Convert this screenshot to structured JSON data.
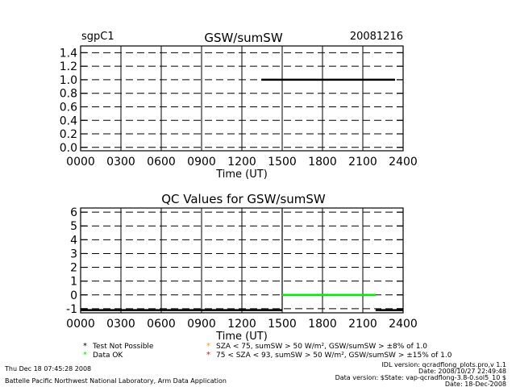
{
  "chart_data": [
    {
      "type": "line",
      "title": "GSW/sumSW",
      "left_label": "sgpC1",
      "right_label": "20081216",
      "xlabel": "Time (UT)",
      "ylabel": "",
      "xlim": [
        0,
        2400
      ],
      "ylim": [
        -0.05,
        1.5
      ],
      "xticks": [
        "0000",
        "0300",
        "0600",
        "0900",
        "1200",
        "1500",
        "1800",
        "2100",
        "2400"
      ],
      "yticks": [
        "0.0",
        "0.2",
        "0.4",
        "0.6",
        "0.8",
        "1.0",
        "1.2",
        "1.4"
      ],
      "yticks_values": [
        0.0,
        0.2,
        0.4,
        0.6,
        0.8,
        1.0,
        1.2,
        1.4
      ],
      "grid": true,
      "series": [
        {
          "color": "#000000",
          "x": [
            1345,
            2340
          ],
          "y": [
            1.0,
            1.0
          ]
        }
      ]
    },
    {
      "type": "line",
      "title": "QC Values for GSW/sumSW",
      "xlabel": "Time (UT)",
      "ylabel": "",
      "xlim": [
        0,
        2400
      ],
      "ylim": [
        -1.3,
        6.3
      ],
      "xticks": [
        "0000",
        "0300",
        "0600",
        "0900",
        "1200",
        "1500",
        "1800",
        "2100",
        "2400"
      ],
      "yticks": [
        "-1",
        "0",
        "1",
        "2",
        "3",
        "4",
        "5",
        "6"
      ],
      "yticks_values": [
        -1,
        0,
        1,
        2,
        3,
        4,
        5,
        6
      ],
      "grid": true,
      "series": [
        {
          "color": "#000000",
          "x": [
            0,
            1500
          ],
          "y": [
            -1.1,
            -1.1
          ]
        },
        {
          "color": "#000000",
          "x": [
            1500,
            1500
          ],
          "y": [
            -1.1,
            6.3
          ]
        },
        {
          "color": "#00ee00",
          "x": [
            1500,
            2195
          ],
          "y": [
            0,
            0
          ]
        },
        {
          "color": "#000000",
          "x": [
            2195,
            2400
          ],
          "y": [
            -1.1,
            -1.1
          ]
        }
      ]
    }
  ],
  "legend": [
    {
      "symbol": "*",
      "color": "#000000",
      "text": "Test Not Possible"
    },
    {
      "symbol": "*",
      "color": "#00ee00",
      "text": "Data OK"
    },
    {
      "symbol": "*",
      "color": "#ff9900",
      "text": "SZA < 75, sumSW > 50 W/m², GSW/sumSW > ±8% of 1.0"
    },
    {
      "symbol": "*",
      "color": "#ff0000",
      "text": "75 < SZA < 93, sumSW > 50 W/m², GSW/sumSW > ±15% of 1.0"
    }
  ],
  "footer": {
    "timestamp": "Thu Dec 18 07:45:28 2008",
    "institution": "Battelle Pacific Northwest National Laboratory, Arm Data Application",
    "idl_version": "IDL version: qcradflong_plots.pro,v 1.1",
    "date1": "Date: 2008/10/27 22:49:48",
    "data_version": "Data version: $State: vap-qcradflong-3.8-0.sol5_10 $",
    "date2": "Date: 18-Dec-2008"
  }
}
